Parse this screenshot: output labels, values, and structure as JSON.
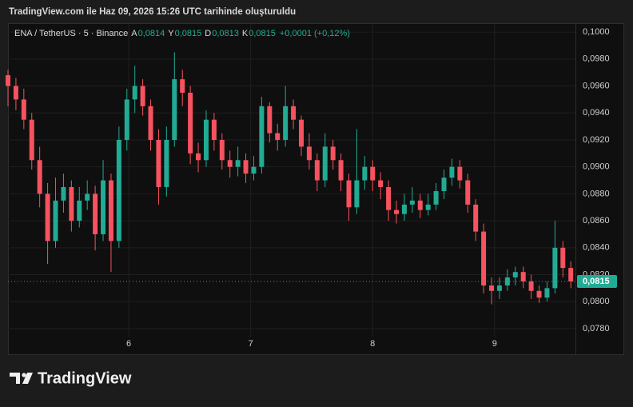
{
  "header": "TradingView.com ile Haz 09, 2026 15:26 UTC tarihinde oluşturuldu",
  "chart_data": {
    "type": "candlestick",
    "symbol": "ENA / TetherUS · 5 · Binance",
    "ohlc_legend": [
      {
        "label": "A",
        "value": "0,0814"
      },
      {
        "label": "Y",
        "value": "0,0815"
      },
      {
        "label": "D",
        "value": "0,0813"
      },
      {
        "label": "K",
        "value": "0,0815"
      }
    ],
    "change": "+0,0001 (+0,12%)",
    "up_color": "#22ab94",
    "down_color": "#f7525f",
    "grid": true,
    "xlim": [
      5.01,
      9.663
    ],
    "xticks": [
      6,
      7,
      8,
      9
    ],
    "ylim": [
      0.0761,
      0.1006
    ],
    "yticks": [
      {
        "value": 0.078,
        "label": "0,0780"
      },
      {
        "value": 0.08,
        "label": "0,0800"
      },
      {
        "value": 0.082,
        "label": "0,0820"
      },
      {
        "value": 0.084,
        "label": "0,0840"
      },
      {
        "value": 0.086,
        "label": "0,0860"
      },
      {
        "value": 0.088,
        "label": "0,0880"
      },
      {
        "value": 0.09,
        "label": "0,0900"
      },
      {
        "value": 0.092,
        "label": "0,0920"
      },
      {
        "value": 0.094,
        "label": "0,0940"
      },
      {
        "value": 0.096,
        "label": "0,0960"
      },
      {
        "value": 0.098,
        "label": "0,0980"
      },
      {
        "value": 0.1,
        "label": "0,1000"
      }
    ],
    "last_price": {
      "value": 0.0815,
      "label": "0,0815"
    },
    "x": [
      5.01,
      5.075,
      5.14,
      5.205,
      5.27,
      5.335,
      5.4,
      5.465,
      5.53,
      5.595,
      5.66,
      5.725,
      5.79,
      5.855,
      5.92,
      5.985,
      6.05,
      6.115,
      6.18,
      6.245,
      6.31,
      6.375,
      6.44,
      6.505,
      6.57,
      6.635,
      6.7,
      6.765,
      6.83,
      6.895,
      6.96,
      7.025,
      7.09,
      7.155,
      7.22,
      7.285,
      7.35,
      7.415,
      7.48,
      7.545,
      7.61,
      7.675,
      7.74,
      7.805,
      7.87,
      7.935,
      8.0,
      8.065,
      8.13,
      8.195,
      8.26,
      8.325,
      8.39,
      8.455,
      8.52,
      8.585,
      8.65,
      8.715,
      8.78,
      8.845,
      8.91,
      8.975,
      9.04,
      9.105,
      9.17,
      9.235,
      9.3,
      9.365,
      9.43,
      9.495,
      9.56,
      9.625
    ],
    "open": [
      0.0968,
      0.096,
      0.095,
      0.0935,
      0.0905,
      0.088,
      0.0845,
      0.0875,
      0.0885,
      0.086,
      0.0875,
      0.088,
      0.085,
      0.089,
      0.0845,
      0.092,
      0.095,
      0.096,
      0.0945,
      0.092,
      0.0885,
      0.092,
      0.0965,
      0.0955,
      0.091,
      0.0905,
      0.0935,
      0.092,
      0.0905,
      0.09,
      0.0905,
      0.0895,
      0.09,
      0.0945,
      0.0925,
      0.092,
      0.0945,
      0.0935,
      0.0915,
      0.0905,
      0.089,
      0.0915,
      0.0905,
      0.089,
      0.087,
      0.089,
      0.09,
      0.089,
      0.0885,
      0.0868,
      0.0865,
      0.0872,
      0.0875,
      0.0868,
      0.0872,
      0.0882,
      0.0892,
      0.09,
      0.089,
      0.0872,
      0.0852,
      0.0812,
      0.0808,
      0.0812,
      0.0818,
      0.0822,
      0.0815,
      0.0808,
      0.0803,
      0.081,
      0.084,
      0.0825
    ],
    "high": [
      0.0972,
      0.0966,
      0.0958,
      0.094,
      0.0915,
      0.0888,
      0.0892,
      0.0895,
      0.089,
      0.0885,
      0.089,
      0.0886,
      0.0905,
      0.0895,
      0.093,
      0.0958,
      0.0975,
      0.0965,
      0.095,
      0.0928,
      0.093,
      0.0985,
      0.0972,
      0.096,
      0.0918,
      0.0942,
      0.094,
      0.0925,
      0.0912,
      0.0915,
      0.091,
      0.0908,
      0.0952,
      0.0948,
      0.0932,
      0.096,
      0.095,
      0.0938,
      0.0925,
      0.091,
      0.0925,
      0.092,
      0.091,
      0.0895,
      0.0928,
      0.0908,
      0.0905,
      0.0896,
      0.089,
      0.0875,
      0.088,
      0.0885,
      0.088,
      0.088,
      0.0888,
      0.0898,
      0.0906,
      0.0905,
      0.0895,
      0.0876,
      0.0858,
      0.0818,
      0.0818,
      0.0824,
      0.0826,
      0.0826,
      0.082,
      0.0812,
      0.0815,
      0.086,
      0.0845,
      0.083
    ],
    "low": [
      0.0945,
      0.0942,
      0.0928,
      0.0898,
      0.087,
      0.0828,
      0.084,
      0.0866,
      0.0852,
      0.0855,
      0.0868,
      0.0838,
      0.0845,
      0.0822,
      0.084,
      0.0912,
      0.094,
      0.0938,
      0.0912,
      0.0872,
      0.0878,
      0.0915,
      0.0945,
      0.0902,
      0.0896,
      0.09,
      0.0912,
      0.0898,
      0.0892,
      0.0893,
      0.0888,
      0.089,
      0.0895,
      0.0918,
      0.0912,
      0.0915,
      0.0928,
      0.0908,
      0.0898,
      0.0882,
      0.0885,
      0.0898,
      0.0882,
      0.086,
      0.0865,
      0.0883,
      0.0882,
      0.0876,
      0.086,
      0.0858,
      0.086,
      0.0866,
      0.0862,
      0.0864,
      0.0868,
      0.0876,
      0.0886,
      0.0884,
      0.0866,
      0.0845,
      0.0806,
      0.0798,
      0.0802,
      0.0808,
      0.0812,
      0.081,
      0.0802,
      0.0799,
      0.08,
      0.0806,
      0.0818,
      0.081
    ],
    "close": [
      0.096,
      0.095,
      0.0935,
      0.0905,
      0.088,
      0.0845,
      0.0875,
      0.0885,
      0.086,
      0.0875,
      0.088,
      0.085,
      0.089,
      0.0845,
      0.092,
      0.095,
      0.096,
      0.0945,
      0.092,
      0.0885,
      0.092,
      0.0965,
      0.0955,
      0.091,
      0.0905,
      0.0935,
      0.092,
      0.0905,
      0.09,
      0.0905,
      0.0895,
      0.09,
      0.0945,
      0.0925,
      0.092,
      0.0945,
      0.0935,
      0.0915,
      0.0905,
      0.089,
      0.0915,
      0.0905,
      0.089,
      0.087,
      0.089,
      0.09,
      0.089,
      0.0885,
      0.0868,
      0.0865,
      0.0872,
      0.0875,
      0.0868,
      0.0872,
      0.0882,
      0.0892,
      0.09,
      0.089,
      0.0872,
      0.0852,
      0.0812,
      0.0808,
      0.0812,
      0.0818,
      0.0822,
      0.0815,
      0.0808,
      0.0803,
      0.081,
      0.084,
      0.0825,
      0.0815
    ]
  },
  "footer": {
    "logo_text": "TradingView"
  }
}
